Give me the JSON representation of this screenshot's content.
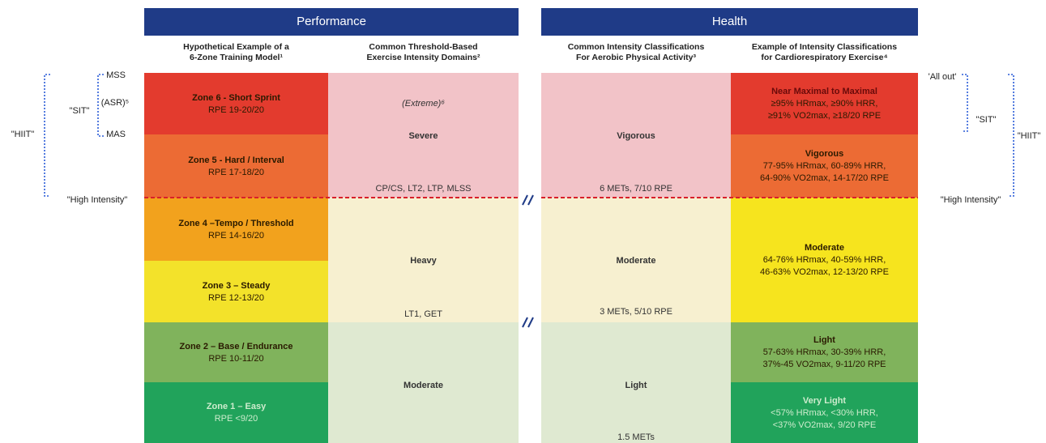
{
  "header": {
    "performance": "Performance",
    "health": "Health"
  },
  "columns": [
    {
      "title": [
        "Hypothetical Example of a",
        "6-Zone Training Model¹"
      ],
      "cells": [
        [
          "Zone 6 - Short Sprint",
          "RPE 19-20/20"
        ],
        [
          "Zone 5 - Hard / Interval",
          "RPE 17-18/20"
        ],
        [
          "Zone 4 –Tempo / Threshold",
          "RPE 14-16/20"
        ],
        [
          "Zone 3 – Steady",
          "RPE 12-13/20"
        ],
        [
          "Zone 2 – Base / Endurance",
          "RPE 10-11/20"
        ],
        [
          "Zone 1 – Easy",
          "RPE <9/20"
        ]
      ]
    },
    {
      "title": [
        "Common Threshold-Based",
        "Exercise Intensity Domains²"
      ],
      "cells": [
        [
          "(Extreme)⁶",
          "Severe",
          "CP/CS, LT2, LTP, MLSS"
        ],
        [
          "Heavy",
          "LT1, GET"
        ],
        [
          "Moderate"
        ]
      ]
    },
    {
      "title": [
        "Common Intensity Classifications",
        "For Aerobic Physical Activity³"
      ],
      "cells": [
        [
          "Vigorous",
          "6 METs, 7/10 RPE"
        ],
        [
          "Moderate",
          "3 METs, 5/10 RPE"
        ],
        [
          "Light",
          "1.5 METs"
        ]
      ]
    },
    {
      "title": [
        "Example of Intensity Classifications",
        "for Cardiorespiratory Exercise⁴"
      ],
      "cells": [
        [
          "Near Maximal to Maximal",
          "≥95% HRmax, ≥90% HRR,",
          "≥91% VO2max, ≥18/20 RPE"
        ],
        [
          "Vigorous",
          "77-95% HRmax, 60-89% HRR,",
          "64-90% VO2max, 14-17/20 RPE"
        ],
        [
          "Moderate",
          "64-76% HRmax, 40-59% HRR,",
          "46-63% VO2max, 12-13/20 RPE"
        ],
        [
          "Light",
          "57-63% HRmax, 30-39% HRR,",
          "37%-45 VO2max, 9-11/20 RPE"
        ],
        [
          "Very Light",
          "<57% HRmax, <30% HRR,",
          "<37% VO2max, 9/20 RPE"
        ]
      ]
    }
  ],
  "annotations_left": {
    "mss": "MSS",
    "asr": "(ASR)⁵",
    "mas": "MAS",
    "sit": "\"SIT\"",
    "hiit": "\"HIIT\"",
    "high": "\"High Intensity\""
  },
  "annotations_right": {
    "allout": "'All out'",
    "sit": "\"SIT\"",
    "hiit": "\"HIIT\"",
    "high": "\"High Intensity\""
  }
}
